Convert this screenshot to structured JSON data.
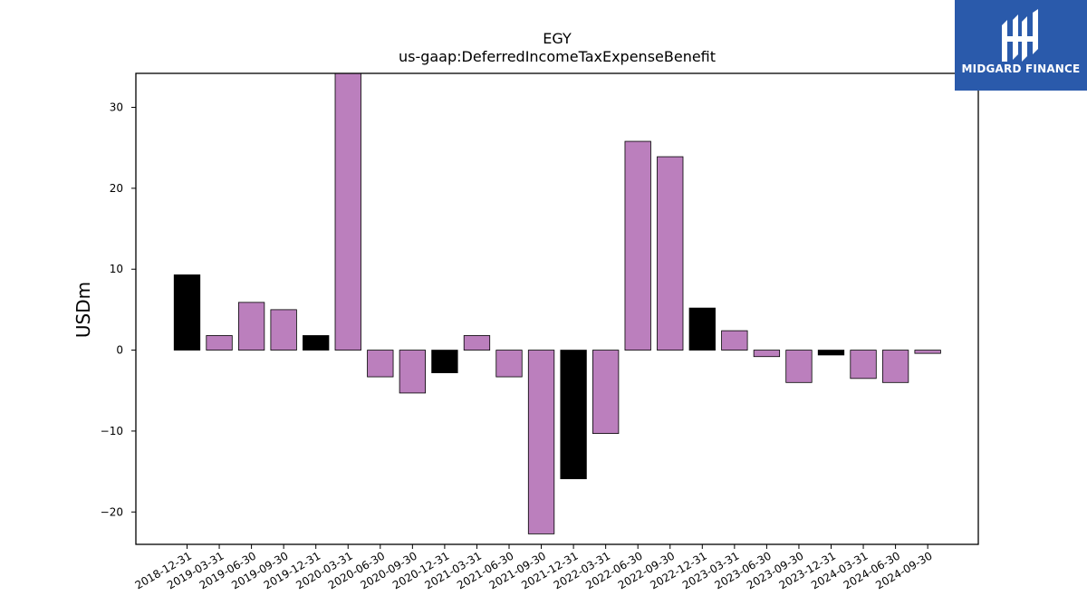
{
  "brand": {
    "name": "MIDGARD FINANCE",
    "background_color": "#2a5aab",
    "text_color": "#ffffff",
    "icon": "midgard-logo-mark"
  },
  "chart_data": {
    "type": "bar",
    "title": "EGY",
    "subtitle": "us-gaap:DeferredIncomeTaxExpenseBenefit",
    "xlabel": "",
    "ylabel": "USDm",
    "ylim": [
      -24,
      34.2
    ],
    "yticks": [
      -20,
      -10,
      0,
      10,
      20,
      30
    ],
    "ytick_labels": [
      "−20",
      "−10",
      "0",
      "10",
      "20",
      "30"
    ],
    "grid": false,
    "colors": {
      "quarterly": "#bb7fbd",
      "annual": "#000000",
      "edge": "#000000"
    },
    "categories": [
      "2018-12-31",
      "2019-03-31",
      "2019-06-30",
      "2019-09-30",
      "2019-12-31",
      "2020-03-31",
      "2020-06-30",
      "2020-09-30",
      "2020-12-31",
      "2021-03-31",
      "2021-06-30",
      "2021-09-30",
      "2021-12-31",
      "2022-03-31",
      "2022-06-30",
      "2022-09-30",
      "2022-12-31",
      "2023-03-31",
      "2023-06-30",
      "2023-09-30",
      "2023-12-31",
      "2024-03-31",
      "2024-06-30",
      "2024-09-30"
    ],
    "values": [
      9.3,
      1.8,
      5.9,
      5.0,
      1.8,
      34.5,
      -3.3,
      -5.3,
      -2.8,
      1.8,
      -3.3,
      -22.7,
      -15.9,
      -10.3,
      25.8,
      23.9,
      5.2,
      2.4,
      -0.8,
      -4.0,
      -0.6,
      -3.5,
      -4.0,
      -0.4
    ],
    "annual": [
      true,
      false,
      false,
      false,
      true,
      false,
      false,
      false,
      true,
      false,
      false,
      false,
      true,
      false,
      false,
      false,
      true,
      false,
      false,
      false,
      true,
      false,
      false,
      false
    ]
  }
}
